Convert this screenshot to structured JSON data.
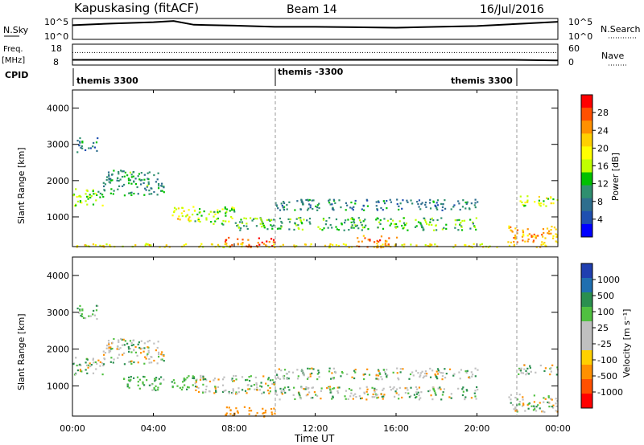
{
  "header": {
    "station": "Kapuskasing (fitACF)",
    "beam": "Beam 14",
    "date": "16/Jul/2016"
  },
  "noise_panel": {
    "left_label": "N.Sky",
    "left_ticks": [
      "10^5",
      "10^0"
    ],
    "right_label": "N.Search",
    "right_ticks": [
      "10^5",
      "10^0"
    ]
  },
  "freq_panel": {
    "left_label_1": "Freq.",
    "left_label_2": "[MHz]",
    "left_ticks": [
      "18",
      "8"
    ],
    "right_label": "Nave",
    "right_ticks": [
      "60",
      "0"
    ]
  },
  "cpid_panel": {
    "label": "CPID",
    "segments": [
      "themis 3300",
      "themis -3300",
      "themis 3300"
    ]
  },
  "x_axis": {
    "label": "Time UT",
    "ticks": [
      "00:00",
      "04:00",
      "08:00",
      "12:00",
      "16:00",
      "20:00",
      "00:00"
    ]
  },
  "power_panel": {
    "ylabel": "Slant Range [km]",
    "yticks": [
      "4000",
      "3000",
      "2000",
      "1000"
    ],
    "colorbar_label": "Power [dB]",
    "colorbar_ticks": [
      "28",
      "24",
      "20",
      "16",
      "12",
      "8",
      "4"
    ],
    "colors": [
      "#ff0000",
      "#ff5000",
      "#ff9000",
      "#ffd000",
      "#ffff00",
      "#c0ff00",
      "#00c000",
      "#2f8f6f",
      "#2e6e8e",
      "#1f4fb0",
      "#0000ff"
    ]
  },
  "velocity_panel": {
    "ylabel": "Slant Range [km]",
    "yticks": [
      "4000",
      "3000",
      "2000",
      "1000"
    ],
    "colorbar_label": "Velocity [m s⁻¹]",
    "colorbar_ticks": [
      "1000",
      "500",
      "100",
      "25",
      "-25",
      "-100",
      "-500",
      "-1000"
    ],
    "colors": [
      "#1f3fb0",
      "#1f6fb0",
      "#2a8f4f",
      "#50c040",
      "#c0c0c0",
      "#c0c0c0",
      "#ffd000",
      "#ff9000",
      "#ff5000",
      "#ff0000"
    ]
  },
  "chart_data": [
    {
      "type": "line",
      "name": "noise-sky-search",
      "x_unit": "hours UT",
      "xlim": [
        0,
        24
      ],
      "series": [
        {
          "x": [
            0,
            2,
            4,
            5,
            6,
            8,
            10,
            12,
            14,
            16,
            18,
            20,
            22,
            24
          ],
          "y": [
            3.4,
            3.8,
            4.1,
            4.4,
            3.5,
            3.3,
            3.0,
            3.0,
            2.9,
            2.8,
            3.0,
            3.2,
            3.7,
            4.2
          ]
        }
      ],
      "ylim": [
        0,
        5
      ]
    },
    {
      "type": "line",
      "name": "frequency-nave",
      "x_unit": "hours UT",
      "xlim": [
        0,
        24
      ],
      "series": [
        {
          "x": [
            0,
            10,
            21.8,
            24
          ],
          "y": [
            10.5,
            10.5,
            10.5,
            10.2
          ]
        },
        {
          "x": [
            0,
            24
          ],
          "y": [
            14,
            14
          ]
        }
      ],
      "ylim": [
        8,
        18
      ]
    },
    {
      "type": "heatmap",
      "name": "power",
      "x_unit": "hours UT",
      "y_unit": "km",
      "xlim": [
        0,
        24
      ],
      "ylim": [
        180,
        4500
      ],
      "zlim": [
        0,
        30
      ],
      "regions": [
        {
          "x": [
            0,
            1.5
          ],
          "y": [
            1300,
            1800
          ],
          "z": 14
        },
        {
          "x": [
            1.5,
            4.5
          ],
          "y": [
            1600,
            2300
          ],
          "z": 10
        },
        {
          "x": [
            0.2,
            1.2
          ],
          "y": [
            2800,
            3200
          ],
          "z": 8
        },
        {
          "x": [
            4.8,
            6.0
          ],
          "y": [
            900,
            1300
          ],
          "z": 18
        },
        {
          "x": [
            6.0,
            8.0
          ],
          "y": [
            800,
            1300
          ],
          "z": 14
        },
        {
          "x": [
            7.5,
            10.0
          ],
          "y": [
            180,
            450
          ],
          "z": 26
        },
        {
          "x": [
            8.0,
            20.0
          ],
          "y": [
            650,
            1000
          ],
          "z": 12
        },
        {
          "x": [
            10.0,
            20.0
          ],
          "y": [
            1200,
            1500
          ],
          "z": 8
        },
        {
          "x": [
            14.0,
            16.0
          ],
          "y": [
            180,
            500
          ],
          "z": 24
        },
        {
          "x": [
            21.5,
            24.0
          ],
          "y": [
            300,
            800
          ],
          "z": 22
        },
        {
          "x": [
            22.0,
            24.0
          ],
          "y": [
            1300,
            1600
          ],
          "z": 16
        },
        {
          "x": [
            0,
            24.0
          ],
          "y": [
            180,
            280
          ],
          "z": 18
        }
      ]
    },
    {
      "type": "heatmap",
      "name": "velocity",
      "x_unit": "hours UT",
      "y_unit": "km",
      "xlim": [
        0,
        24
      ],
      "ylim": [
        180,
        4500
      ],
      "zlim": [
        -1000,
        1000
      ],
      "regions": [
        {
          "x": [
            0,
            1.5
          ],
          "y": [
            1300,
            1800
          ],
          "z": 0
        },
        {
          "x": [
            1.5,
            4.5
          ],
          "y": [
            1600,
            2300
          ],
          "z": 0
        },
        {
          "x": [
            0.2,
            1.2
          ],
          "y": [
            2800,
            3200
          ],
          "z": 100
        },
        {
          "x": [
            2.5,
            4.5
          ],
          "y": [
            900,
            1300
          ],
          "z": 150
        },
        {
          "x": [
            4.8,
            6.0
          ],
          "y": [
            900,
            1300
          ],
          "z": 150
        },
        {
          "x": [
            6.0,
            10.0
          ],
          "y": [
            800,
            1300
          ],
          "z": 0
        },
        {
          "x": [
            7.5,
            10.0
          ],
          "y": [
            180,
            450
          ],
          "z": -300
        },
        {
          "x": [
            10.0,
            20.0
          ],
          "y": [
            650,
            1000
          ],
          "z": 0
        },
        {
          "x": [
            10.0,
            20.0
          ],
          "y": [
            1200,
            1500
          ],
          "z": 0
        },
        {
          "x": [
            21.5,
            24.0
          ],
          "y": [
            300,
            800
          ],
          "z": 0
        },
        {
          "x": [
            22.0,
            24.0
          ],
          "y": [
            1300,
            1600
          ],
          "z": 0
        }
      ]
    }
  ]
}
